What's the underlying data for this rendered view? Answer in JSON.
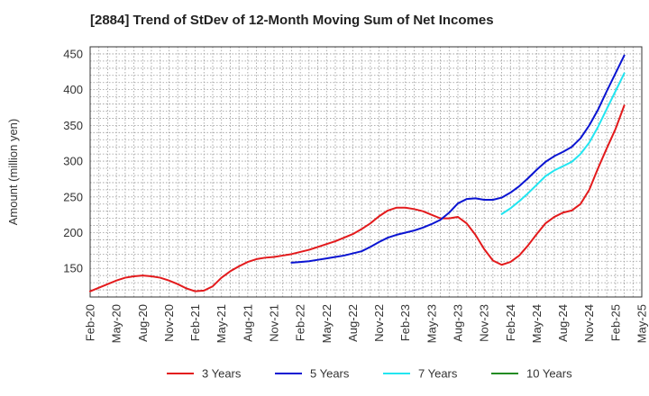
{
  "chart_data": {
    "type": "line",
    "title": "[2884]  Trend of StDev of 12-Month Moving Sum of Net Incomes",
    "ylabel": "Amount (million yen)",
    "xlabel": "",
    "ylim": [
      110,
      460
    ],
    "yticks": [
      150,
      200,
      250,
      300,
      350,
      400,
      450
    ],
    "xlim": [
      "2020-02",
      "2025-05"
    ],
    "xticks": [
      "Feb-20",
      "May-20",
      "Aug-20",
      "Nov-20",
      "Feb-21",
      "May-21",
      "Aug-21",
      "Nov-21",
      "Feb-22",
      "May-22",
      "Aug-22",
      "Nov-22",
      "Feb-23",
      "May-23",
      "Aug-23",
      "Nov-23",
      "Feb-24",
      "May-24",
      "Aug-24",
      "Nov-24",
      "Feb-25",
      "May-25"
    ],
    "grid": true,
    "legend_position": "bottom",
    "series": [
      {
        "name": "3 Years",
        "color": "#e31a1c",
        "points": [
          [
            "2020-02",
            118
          ],
          [
            "2020-03",
            123
          ],
          [
            "2020-04",
            128
          ],
          [
            "2020-05",
            133
          ],
          [
            "2020-06",
            137
          ],
          [
            "2020-07",
            139
          ],
          [
            "2020-08",
            140
          ],
          [
            "2020-09",
            139
          ],
          [
            "2020-10",
            137
          ],
          [
            "2020-11",
            133
          ],
          [
            "2020-12",
            128
          ],
          [
            "2021-01",
            122
          ],
          [
            "2021-02",
            118
          ],
          [
            "2021-03",
            119
          ],
          [
            "2021-04",
            125
          ],
          [
            "2021-05",
            137
          ],
          [
            "2021-06",
            146
          ],
          [
            "2021-07",
            153
          ],
          [
            "2021-08",
            159
          ],
          [
            "2021-09",
            163
          ],
          [
            "2021-10",
            165
          ],
          [
            "2021-11",
            166
          ],
          [
            "2021-12",
            168
          ],
          [
            "2022-01",
            170
          ],
          [
            "2022-02",
            173
          ],
          [
            "2022-03",
            176
          ],
          [
            "2022-04",
            180
          ],
          [
            "2022-05",
            184
          ],
          [
            "2022-06",
            188
          ],
          [
            "2022-07",
            193
          ],
          [
            "2022-08",
            198
          ],
          [
            "2022-09",
            205
          ],
          [
            "2022-10",
            213
          ],
          [
            "2022-11",
            223
          ],
          [
            "2022-12",
            231
          ],
          [
            "2023-01",
            235
          ],
          [
            "2023-02",
            235
          ],
          [
            "2023-03",
            233
          ],
          [
            "2023-04",
            230
          ],
          [
            "2023-05",
            225
          ],
          [
            "2023-06",
            220
          ],
          [
            "2023-07",
            220
          ],
          [
            "2023-08",
            222
          ],
          [
            "2023-09",
            213
          ],
          [
            "2023-10",
            197
          ],
          [
            "2023-11",
            177
          ],
          [
            "2023-12",
            161
          ],
          [
            "2024-01",
            155
          ],
          [
            "2024-02",
            159
          ],
          [
            "2024-03",
            168
          ],
          [
            "2024-04",
            182
          ],
          [
            "2024-05",
            198
          ],
          [
            "2024-06",
            213
          ],
          [
            "2024-07",
            222
          ],
          [
            "2024-08",
            228
          ],
          [
            "2024-09",
            231
          ],
          [
            "2024-10",
            240
          ],
          [
            "2024-11",
            260
          ],
          [
            "2024-12",
            290
          ],
          [
            "2025-01",
            318
          ],
          [
            "2025-02",
            345
          ],
          [
            "2025-03",
            378
          ]
        ]
      },
      {
        "name": "5 Years",
        "color": "#0a14d2",
        "points": [
          [
            "2022-01",
            158
          ],
          [
            "2022-02",
            159
          ],
          [
            "2022-03",
            160
          ],
          [
            "2022-04",
            162
          ],
          [
            "2022-05",
            164
          ],
          [
            "2022-06",
            166
          ],
          [
            "2022-07",
            168
          ],
          [
            "2022-08",
            171
          ],
          [
            "2022-09",
            174
          ],
          [
            "2022-10",
            180
          ],
          [
            "2022-11",
            187
          ],
          [
            "2022-12",
            193
          ],
          [
            "2023-01",
            197
          ],
          [
            "2023-02",
            200
          ],
          [
            "2023-03",
            203
          ],
          [
            "2023-04",
            207
          ],
          [
            "2023-05",
            212
          ],
          [
            "2023-06",
            218
          ],
          [
            "2023-07",
            228
          ],
          [
            "2023-08",
            241
          ],
          [
            "2023-09",
            247
          ],
          [
            "2023-10",
            248
          ],
          [
            "2023-11",
            246
          ],
          [
            "2023-12",
            246
          ],
          [
            "2024-01",
            249
          ],
          [
            "2024-02",
            256
          ],
          [
            "2024-03",
            265
          ],
          [
            "2024-04",
            276
          ],
          [
            "2024-05",
            288
          ],
          [
            "2024-06",
            299
          ],
          [
            "2024-07",
            307
          ],
          [
            "2024-08",
            313
          ],
          [
            "2024-09",
            320
          ],
          [
            "2024-10",
            332
          ],
          [
            "2024-11",
            350
          ],
          [
            "2024-12",
            372
          ],
          [
            "2025-01",
            398
          ],
          [
            "2025-02",
            423
          ],
          [
            "2025-03",
            448
          ]
        ]
      },
      {
        "name": "7 Years",
        "color": "#22e5f0",
        "points": [
          [
            "2024-01",
            226
          ],
          [
            "2024-02",
            234
          ],
          [
            "2024-03",
            244
          ],
          [
            "2024-04",
            255
          ],
          [
            "2024-05",
            267
          ],
          [
            "2024-06",
            279
          ],
          [
            "2024-07",
            287
          ],
          [
            "2024-08",
            293
          ],
          [
            "2024-09",
            299
          ],
          [
            "2024-10",
            310
          ],
          [
            "2024-11",
            326
          ],
          [
            "2024-12",
            348
          ],
          [
            "2025-01",
            373
          ],
          [
            "2025-02",
            398
          ],
          [
            "2025-03",
            423
          ]
        ]
      },
      {
        "name": "10 Years",
        "color": "#228b22",
        "points": []
      }
    ]
  }
}
